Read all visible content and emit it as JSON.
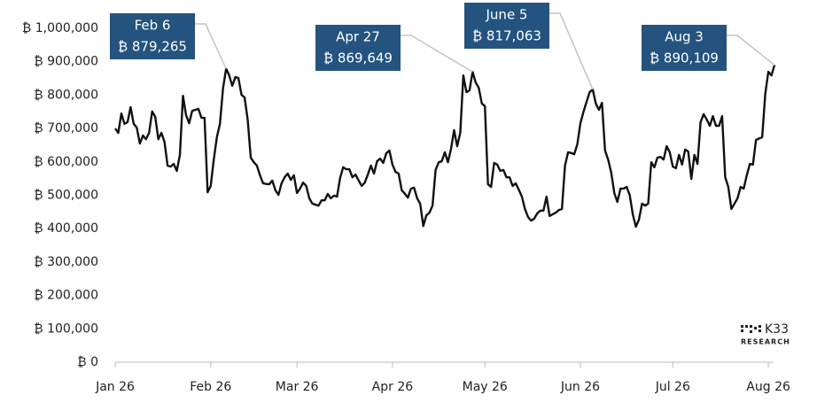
{
  "chart_data": {
    "type": "line",
    "color": "#111111",
    "ylim": [
      0,
      1000000
    ],
    "yticks": [
      {
        "value": 0,
        "label": "₿ 0"
      },
      {
        "value": 100000,
        "label": "₿ 100,000"
      },
      {
        "value": 200000,
        "label": "₿ 200,000"
      },
      {
        "value": 300000,
        "label": "₿ 300,000"
      },
      {
        "value": 400000,
        "label": "₿ 400,000"
      },
      {
        "value": 500000,
        "label": "₿ 500,000"
      },
      {
        "value": 600000,
        "label": "₿ 600,000"
      },
      {
        "value": 700000,
        "label": "₿ 700,000"
      },
      {
        "value": 800000,
        "label": "₿ 800,000"
      },
      {
        "value": 900000,
        "label": "₿ 900,000"
      },
      {
        "value": 1000000,
        "label": "₿ 1,000,000"
      }
    ],
    "xlim": [
      "2026-01-01",
      "2026-08-05"
    ],
    "xticks": [
      {
        "value": "2026-01-01",
        "label": "Jan 26"
      },
      {
        "value": "2026-02-01",
        "label": "Feb 26"
      },
      {
        "value": "2026-03-01",
        "label": "Mar 26"
      },
      {
        "value": "2026-04-01",
        "label": "Apr 26"
      },
      {
        "value": "2026-05-01",
        "label": "May 26"
      },
      {
        "value": "2026-06-01",
        "label": "Jun 26"
      },
      {
        "value": "2026-07-01",
        "label": "Jul 26"
      },
      {
        "value": "2026-08-01",
        "label": "Aug 26"
      }
    ],
    "grid": false,
    "annotations": [
      {
        "x": "2026-02-06",
        "value": 879265,
        "title": "Feb 6",
        "value_label": "₿ 879,265"
      },
      {
        "x": "2026-04-27",
        "value": 869649,
        "title": "Apr 27",
        "value_label": "₿ 869,649"
      },
      {
        "x": "2026-06-05",
        "value": 817063,
        "title": "June 5",
        "value_label": "₿ 817,063"
      },
      {
        "x": "2026-08-03",
        "value": 890109,
        "title": "Aug 3",
        "value_label": "₿ 890,109"
      }
    ],
    "annotation_color": "#24537f",
    "brand": {
      "name": "K33",
      "sub": "RESEARCH"
    },
    "x": [
      "2026-01-01",
      "2026-01-02",
      "2026-01-03",
      "2026-01-04",
      "2026-01-05",
      "2026-01-06",
      "2026-01-07",
      "2026-01-08",
      "2026-01-09",
      "2026-01-10",
      "2026-01-11",
      "2026-01-12",
      "2026-01-13",
      "2026-01-14",
      "2026-01-15",
      "2026-01-16",
      "2026-01-17",
      "2026-01-18",
      "2026-01-19",
      "2026-01-20",
      "2026-01-21",
      "2026-01-22",
      "2026-01-23",
      "2026-01-24",
      "2026-01-25",
      "2026-01-26",
      "2026-01-27",
      "2026-01-28",
      "2026-01-29",
      "2026-01-30",
      "2026-01-31",
      "2026-02-01",
      "2026-02-02",
      "2026-02-03",
      "2026-02-04",
      "2026-02-05",
      "2026-02-06",
      "2026-02-07",
      "2026-02-08",
      "2026-02-09",
      "2026-02-10",
      "2026-02-11",
      "2026-02-12",
      "2026-02-13",
      "2026-02-14",
      "2026-02-15",
      "2026-02-16",
      "2026-02-17",
      "2026-02-18",
      "2026-02-19",
      "2026-02-20",
      "2026-02-21",
      "2026-02-22",
      "2026-02-23",
      "2026-02-24",
      "2026-02-25",
      "2026-02-26",
      "2026-02-27",
      "2026-02-28",
      "2026-03-01",
      "2026-03-02",
      "2026-03-03",
      "2026-03-04",
      "2026-03-05",
      "2026-03-06",
      "2026-03-07",
      "2026-03-08",
      "2026-03-09",
      "2026-03-10",
      "2026-03-11",
      "2026-03-12",
      "2026-03-13",
      "2026-03-14",
      "2026-03-15",
      "2026-03-16",
      "2026-03-17",
      "2026-03-18",
      "2026-03-19",
      "2026-03-20",
      "2026-03-21",
      "2026-03-22",
      "2026-03-23",
      "2026-03-24",
      "2026-03-25",
      "2026-03-26",
      "2026-03-27",
      "2026-03-28",
      "2026-03-29",
      "2026-03-30",
      "2026-03-31",
      "2026-04-01",
      "2026-04-02",
      "2026-04-03",
      "2026-04-04",
      "2026-04-05",
      "2026-04-06",
      "2026-04-07",
      "2026-04-08",
      "2026-04-09",
      "2026-04-10",
      "2026-04-11",
      "2026-04-12",
      "2026-04-13",
      "2026-04-14",
      "2026-04-15",
      "2026-04-16",
      "2026-04-17",
      "2026-04-18",
      "2026-04-19",
      "2026-04-20",
      "2026-04-21",
      "2026-04-22",
      "2026-04-23",
      "2026-04-24",
      "2026-04-25",
      "2026-04-26",
      "2026-04-27",
      "2026-04-28",
      "2026-04-29",
      "2026-04-30",
      "2026-05-01",
      "2026-05-02",
      "2026-05-03",
      "2026-05-04",
      "2026-05-05",
      "2026-05-06",
      "2026-05-07",
      "2026-05-08",
      "2026-05-09",
      "2026-05-10",
      "2026-05-11",
      "2026-05-12",
      "2026-05-13",
      "2026-05-14",
      "2026-05-15",
      "2026-05-16",
      "2026-05-17",
      "2026-05-18",
      "2026-05-19",
      "2026-05-20",
      "2026-05-21",
      "2026-05-22",
      "2026-05-23",
      "2026-05-24",
      "2026-05-25",
      "2026-05-26",
      "2026-05-27",
      "2026-05-28",
      "2026-05-29",
      "2026-05-30",
      "2026-05-31",
      "2026-06-01",
      "2026-06-02",
      "2026-06-03",
      "2026-06-04",
      "2026-06-05",
      "2026-06-06",
      "2026-06-07",
      "2026-06-08",
      "2026-06-09",
      "2026-06-10",
      "2026-06-11",
      "2026-06-12",
      "2026-06-13",
      "2026-06-14",
      "2026-06-15",
      "2026-06-16",
      "2026-06-17",
      "2026-06-18",
      "2026-06-19",
      "2026-06-20",
      "2026-06-21",
      "2026-06-22",
      "2026-06-23",
      "2026-06-24",
      "2026-06-25",
      "2026-06-26",
      "2026-06-27",
      "2026-06-28",
      "2026-06-29",
      "2026-06-30",
      "2026-07-01",
      "2026-07-02",
      "2026-07-03",
      "2026-07-04",
      "2026-07-05",
      "2026-07-06",
      "2026-07-07",
      "2026-07-08",
      "2026-07-09",
      "2026-07-10",
      "2026-07-11",
      "2026-07-12",
      "2026-07-13",
      "2026-07-14",
      "2026-07-15",
      "2026-07-16",
      "2026-07-17",
      "2026-07-18",
      "2026-07-19",
      "2026-07-20",
      "2026-07-21",
      "2026-07-22",
      "2026-07-23",
      "2026-07-24",
      "2026-07-25",
      "2026-07-26",
      "2026-07-27",
      "2026-07-28",
      "2026-07-29",
      "2026-07-30",
      "2026-07-31",
      "2026-08-01",
      "2026-08-02",
      "2026-08-03"
    ],
    "values": [
      700000,
      687000,
      745000,
      714000,
      719000,
      764000,
      714000,
      703000,
      655000,
      679000,
      668000,
      687000,
      751000,
      735000,
      668000,
      687000,
      660000,
      589000,
      586000,
      594000,
      573000,
      621000,
      798000,
      740000,
      716000,
      753000,
      756000,
      759000,
      732000,
      732000,
      509000,
      528000,
      607000,
      674000,
      714000,
      820000,
      879265,
      859000,
      828000,
      854000,
      851000,
      801000,
      793000,
      727000,
      613000,
      599000,
      589000,
      560000,
      536000,
      534000,
      533000,
      544000,
      515000,
      501000,
      536000,
      554000,
      565000,
      546000,
      560000,
      507000,
      520000,
      538000,
      528000,
      491000,
      475000,
      472000,
      469000,
      485000,
      485000,
      504000,
      491000,
      499000,
      496000,
      552000,
      584000,
      578000,
      578000,
      554000,
      562000,
      545000,
      528000,
      538000,
      562000,
      589000,
      565000,
      602000,
      610000,
      597000,
      626000,
      634000,
      592000,
      570000,
      565000,
      515000,
      505000,
      493000,
      520000,
      523000,
      491000,
      475000,
      408000,
      440000,
      448000,
      469000,
      576000,
      599000,
      602000,
      629000,
      599000,
      639000,
      695000,
      647000,
      687000,
      859000,
      809000,
      814000,
      869649,
      838000,
      822000,
      775000,
      767000,
      533000,
      525000,
      597000,
      592000,
      573000,
      576000,
      554000,
      554000,
      528000,
      536000,
      517000,
      496000,
      459000,
      435000,
      424000,
      430000,
      446000,
      454000,
      454000,
      496000,
      438000,
      443000,
      448000,
      456000,
      459000,
      589000,
      629000,
      627000,
      623000,
      653000,
      716000,
      750000,
      780000,
      809000,
      817063,
      775000,
      756000,
      777000,
      634000,
      607000,
      568000,
      507000,
      480000,
      520000,
      520000,
      525000,
      501000,
      443000,
      406000,
      427000,
      475000,
      469000,
      475000,
      599000,
      584000,
      613000,
      615000,
      607000,
      647000,
      629000,
      586000,
      581000,
      621000,
      592000,
      637000,
      631000,
      549000,
      621000,
      594000,
      719000,
      743000,
      727000,
      708000,
      737000,
      708000,
      708000,
      737000,
      554000,
      525000,
      459000,
      475000,
      491000,
      525000,
      520000,
      560000,
      594000,
      592000,
      666000,
      670000,
      674000,
      804000,
      870000,
      859000,
      890109
    ]
  }
}
